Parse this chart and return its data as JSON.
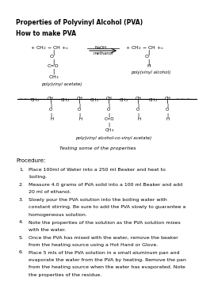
{
  "title": "Properties of Polyvinyl Alcohol (PVA)",
  "subtitle": "How to make PVA",
  "background_color": "#ffffff",
  "text_color": "#000000",
  "procedure_title": "Procedure:",
  "procedure_note": "Testing some of the properties",
  "steps": [
    "Place 100ml of Water into a 250 ml Beaker and heat to\nboiling.",
    "Measure 4.0 grams of PVA solid into a 100 ml Beaker and add\n20 ml of ethanol.",
    "Slowly pour the PVA solution into the boiling water with\nconstant stirring. Be sure to add the PVA slowly to guarantee a\nhomogeneous solution.",
    "Note the properties of the solution as the PVA solution mixes\nwith the water.",
    "Once the PVA has mixed with the water, remove the beaker\nfrom the heating source using a Hot Hand or Glove.",
    "Place 5 mls of the PVA solution in a small aluminum pan and\nevaporate the water from the PVA by heating. Remove the pan\nfrom the heating source when the water has evaporated. Note\nthe properties of the residue."
  ]
}
